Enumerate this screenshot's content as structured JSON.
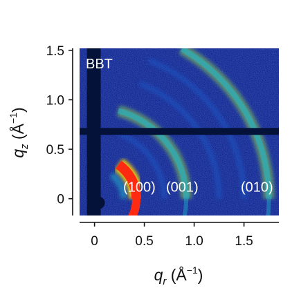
{
  "chart_data": {
    "type": "heatmap",
    "title": "",
    "xlabel": "q_r (Å⁻¹)",
    "ylabel": "q_z (Å⁻¹)",
    "xlim": [
      -0.15,
      1.85
    ],
    "ylim": [
      -0.17,
      1.52
    ],
    "x_ticks": [
      0,
      0.5,
      1.0,
      1.5
    ],
    "x_tick_labels": [
      "0",
      "0.5",
      "1.0",
      "1.5"
    ],
    "y_ticks": [
      0,
      0.5,
      1.0,
      1.5
    ],
    "y_tick_labels": [
      "0",
      "0.5",
      "1.0",
      "1.5"
    ],
    "sample_label": "BBT",
    "peak_labels": [
      {
        "text": "(100)",
        "q_r": 0.45,
        "q_z": 0.07
      },
      {
        "text": "(001)",
        "q_r": 0.88,
        "q_z": 0.07
      },
      {
        "text": "(010)",
        "q_r": 1.63,
        "q_z": 0.07
      }
    ],
    "scattering_rings": [
      {
        "q": 0.42,
        "intensity": "high",
        "arc_from_deg": 0,
        "arc_to_deg": 55
      },
      {
        "q": 0.92,
        "intensity": "medium",
        "arc_from_deg": 0,
        "arc_to_deg": 75
      },
      {
        "q": 1.75,
        "intensity": "medium",
        "arc_from_deg": 0,
        "arc_to_deg": 60
      }
    ],
    "detector_gaps": {
      "vertical_q_r": 0.0,
      "horizontal_q_z": 0.68
    },
    "colormap": [
      "#0b1f8c",
      "#1e63d6",
      "#22b4c9",
      "#8fd94e",
      "#ffd400",
      "#ff2a12"
    ]
  },
  "axes": {
    "x": {
      "title_main": "q",
      "title_sub": "r",
      "title_unit": " (Å",
      "title_sup": "−1",
      "title_close": ")"
    },
    "y": {
      "title_main": "q",
      "title_sub": "z",
      "title_unit": " (Å",
      "title_sup": "−1",
      "title_close": ")"
    }
  }
}
